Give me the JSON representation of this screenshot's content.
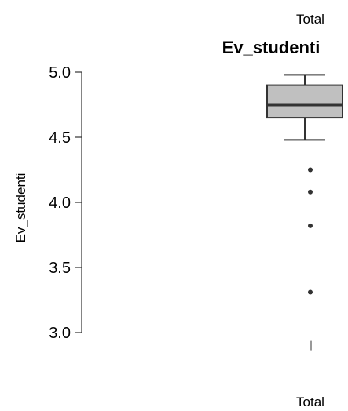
{
  "chart_data": {
    "type": "box",
    "category_header": "Total",
    "title": "Ev_studenti",
    "ylabel": "Ev_studenti",
    "xlabel": "",
    "categories": [
      "Total"
    ],
    "ylim": [
      2.9,
      5.0
    ],
    "yticks": [
      "3.0",
      "3.5",
      "4.0",
      "4.5",
      "5.0"
    ],
    "box": {
      "whisker_low": 4.48,
      "q1": 4.65,
      "median": 4.75,
      "q3": 4.9,
      "whisker_high": 4.98
    },
    "outliers": [
      4.25,
      4.08,
      3.82,
      3.31
    ],
    "box_fill": "#c0c0c0",
    "line_color": "#333333",
    "grid": false
  }
}
